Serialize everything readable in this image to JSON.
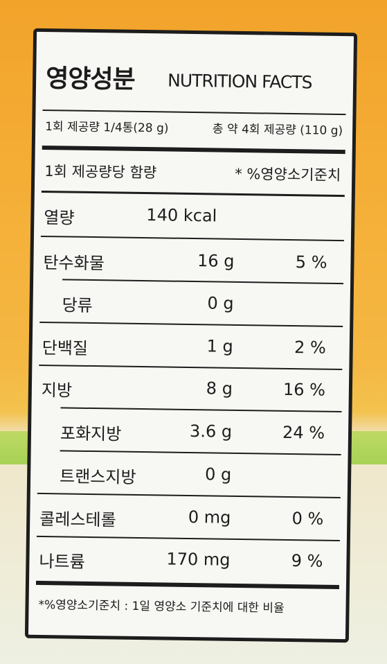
{
  "title": {
    "korean": "영양성분",
    "english": "NUTRITION FACTS"
  },
  "serving": {
    "per_serving": "1회 제공량 1/4통(28 g)",
    "total": "총 약 4회 제공량 (110 g)"
  },
  "table_header": {
    "left": "1회 제공량당 함량",
    "right": "* %영양소기준치"
  },
  "nutrients": [
    {
      "name": "열량",
      "amount": "140 kcal",
      "dv": ""
    },
    {
      "name": "탄수화물",
      "amount": "16 g",
      "dv": "5 %"
    },
    {
      "name": "당류",
      "amount": "0 g",
      "dv": ""
    },
    {
      "name": "단백질",
      "amount": "1 g",
      "dv": "2 %"
    },
    {
      "name": "지방",
      "amount": "8 g",
      "dv": "16 %"
    },
    {
      "name": "포화지방",
      "amount": "3.6 g",
      "dv": "24 %"
    },
    {
      "name": "트랜스지방",
      "amount": "0 g",
      "dv": ""
    },
    {
      "name": "콜레스테롤",
      "amount": "0 mg",
      "dv": "0 %"
    },
    {
      "name": "나트륨",
      "amount": "170 mg",
      "dv": "9 %"
    }
  ],
  "footnote": "*%영양소기준치 : 1일 영양소 기준치에 대한 비율"
}
